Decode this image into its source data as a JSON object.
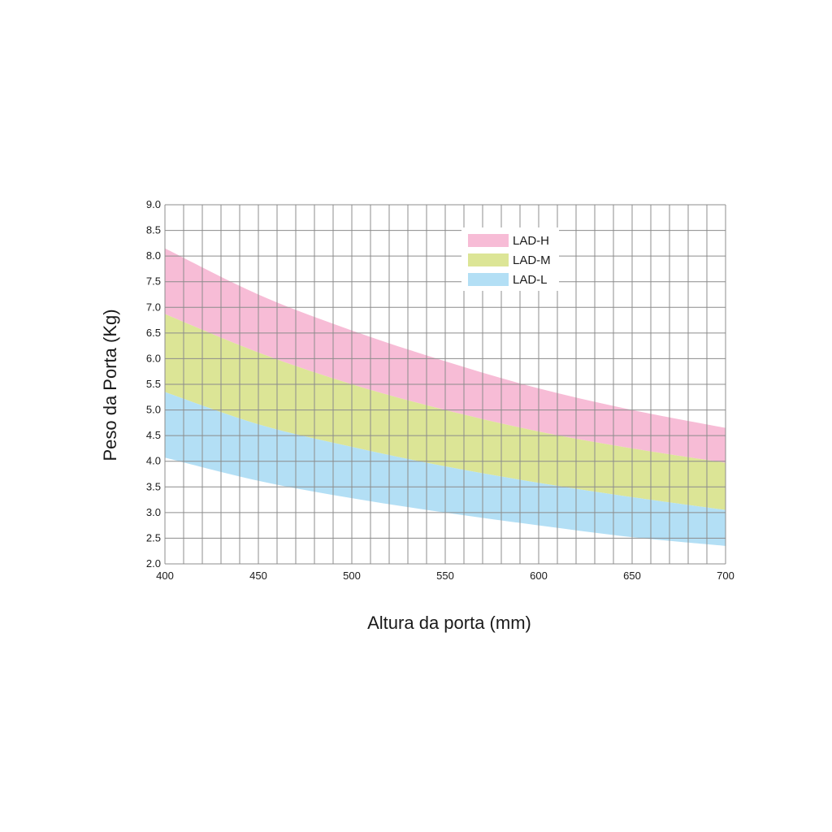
{
  "chart_data": {
    "type": "area",
    "xlabel": "Altura da porta (mm)",
    "ylabel": "Peso da Porta (Kg)",
    "xlim": [
      400,
      700
    ],
    "ylim": [
      2.0,
      9.0
    ],
    "x_ticks": [
      "400",
      "450",
      "500",
      "550",
      "600",
      "650",
      "700"
    ],
    "y_ticks": [
      "2.0",
      "2.5",
      "3.0",
      "3.5",
      "4.0",
      "4.5",
      "5.0",
      "5.5",
      "6.0",
      "6.5",
      "7.0",
      "7.5",
      "8.0",
      "8.5",
      "9.0"
    ],
    "grid": true,
    "legend_position": "top-right",
    "x": [
      400,
      450,
      500,
      550,
      600,
      650,
      700
    ],
    "series": [
      {
        "name": "LAD-H",
        "color": "#f7bcd6",
        "lower": [
          6.87,
          6.12,
          5.5,
          5.0,
          4.58,
          4.25,
          3.97
        ],
        "upper": [
          8.15,
          7.25,
          6.55,
          5.95,
          5.42,
          5.0,
          4.65
        ]
      },
      {
        "name": "LAD-M",
        "color": "#dce596",
        "lower": [
          5.35,
          4.72,
          4.28,
          3.9,
          3.58,
          3.3,
          3.05
        ],
        "upper": [
          6.87,
          6.12,
          5.5,
          5.0,
          4.58,
          4.25,
          3.97
        ]
      },
      {
        "name": "LAD-L",
        "color": "#b3dff5",
        "lower": [
          4.07,
          3.62,
          3.28,
          3.0,
          2.75,
          2.52,
          2.35
        ],
        "upper": [
          5.35,
          4.72,
          4.28,
          3.9,
          3.58,
          3.3,
          3.05
        ]
      }
    ]
  }
}
